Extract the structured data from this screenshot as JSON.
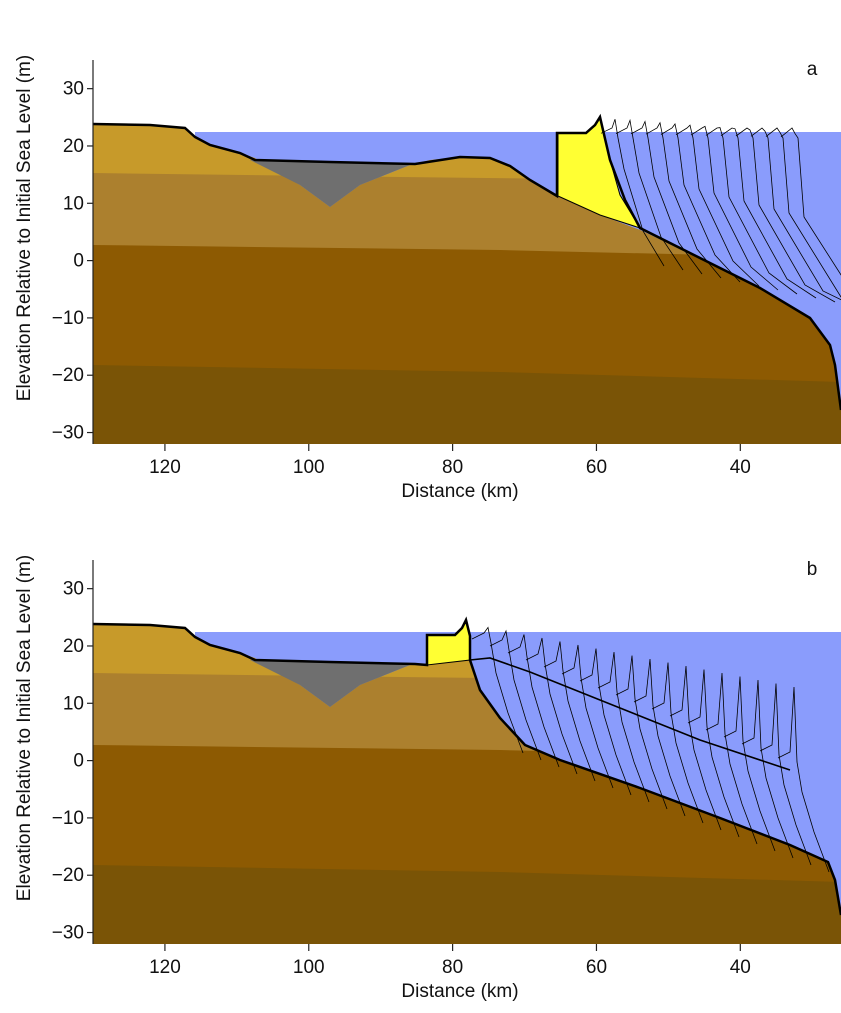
{
  "chart_data": [
    {
      "type": "profile",
      "panel_label": "a",
      "xlabel": "Distance (km)",
      "ylabel": "Elevation Relative to Initial Sea Level (m)",
      "xlim": [
        130,
        26
      ],
      "xticks": [
        120,
        100,
        80,
        60,
        40
      ],
      "ylim": [
        -32,
        35
      ],
      "yticks": [
        30,
        20,
        10,
        0,
        {
          "value": -10,
          "label": "−10"
        },
        {
          "value": -20,
          "label": "−20"
        },
        {
          "value": -30,
          "label": "−30"
        }
      ]
    },
    {
      "type": "profile",
      "panel_label": "b",
      "xlabel": "Distance (km)",
      "ylabel": "Elevation Relative to Initial Sea Level (m)",
      "xlim": [
        130,
        26
      ],
      "xticks": [
        120,
        100,
        80,
        60,
        40
      ],
      "ylim": [
        -32,
        35
      ],
      "yticks": [
        30,
        20,
        10,
        0,
        {
          "value": -10,
          "label": "−10"
        },
        {
          "value": -20,
          "label": "−20"
        },
        {
          "value": -30,
          "label": "−30"
        }
      ]
    }
  ]
}
